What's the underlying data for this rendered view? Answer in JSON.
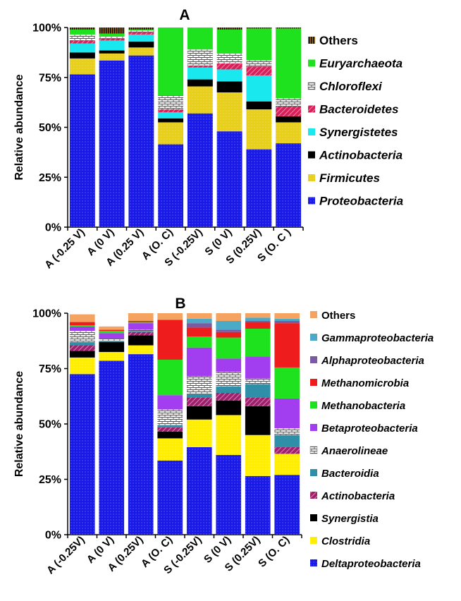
{
  "chart_data": [
    {
      "type": "bar",
      "stacked": true,
      "title": "A",
      "ylabel": "Relative  abundance",
      "ylim": [
        0,
        100
      ],
      "yticks": [
        "0%",
        "25%",
        "50%",
        "75%",
        "100%"
      ],
      "categories": [
        "A (-0.25 V)",
        "A (0 V)",
        "A (0.25 V)",
        "A (O. C)",
        "S (-0.25V)",
        "S (0 V)",
        "S (0.25V)",
        "S (O. C )"
      ],
      "legend_position": "right",
      "series": [
        {
          "name": "Proteobacteria",
          "color": "#1a1ae6",
          "pattern": "dots",
          "values": [
            76.5,
            83.5,
            86,
            41.5,
            57,
            48,
            39,
            42
          ]
        },
        {
          "name": "Firmicutes",
          "color": "#e8cf1c",
          "pattern": "dots",
          "values": [
            8,
            3.5,
            4,
            11,
            13.5,
            19.5,
            20,
            10.5
          ]
        },
        {
          "name": "Actinobacteria",
          "color": "#000000",
          "pattern": "solid",
          "values": [
            3,
            1.5,
            3,
            2,
            3.5,
            5.5,
            4,
            3
          ]
        },
        {
          "name": "Synergistetes",
          "color": "#19e8ef",
          "pattern": "solid",
          "values": [
            4.5,
            5,
            3.5,
            3,
            6,
            6,
            13,
            0
          ]
        },
        {
          "name": "Bacteroidetes",
          "color": "#d9205a",
          "pattern": "hatch",
          "values": [
            1.5,
            1,
            1,
            1.5,
            1,
            3,
            4.5,
            5
          ]
        },
        {
          "name": "Chloroflexi",
          "color": "#ffffff",
          "pattern": "bricks",
          "values": [
            3,
            1,
            1,
            7,
            8,
            5,
            3,
            4
          ]
        },
        {
          "name": "Euryarchaeota",
          "color": "#1ee21e",
          "pattern": "solid",
          "values": [
            2.5,
            1.5,
            0.5,
            34,
            11,
            12,
            16,
            35
          ]
        },
        {
          "name": "Others",
          "color": "#9a6a1a",
          "pattern": "vstripes",
          "values": [
            1,
            3,
            1,
            0,
            0,
            1,
            0.5,
            0.5
          ]
        }
      ]
    },
    {
      "type": "bar",
      "stacked": true,
      "title": "B",
      "ylabel": "Relative  abundance",
      "ylim": [
        0,
        100
      ],
      "yticks": [
        "0%",
        "25%",
        "50%",
        "75%",
        "100%"
      ],
      "categories": [
        "A (-0.25V)",
        "A (0 V)",
        "A (0.25V)",
        "A (O. C)",
        "S (-0.25V)",
        "S (0 V)",
        "S (0.25V)",
        "S (O. C)"
      ],
      "legend_position": "right",
      "series": [
        {
          "name": "Deltaproteobacteria",
          "color": "#1a1ae6",
          "pattern": "dots",
          "values": [
            72.5,
            78.5,
            81.5,
            33.5,
            39.5,
            36,
            26.5,
            27
          ]
        },
        {
          "name": "Clostridia",
          "color": "#ffee00",
          "pattern": "dots",
          "values": [
            7.5,
            4,
            4,
            10,
            12.5,
            18,
            18.5,
            9.5
          ]
        },
        {
          "name": "Synergistia",
          "color": "#000000",
          "pattern": "solid",
          "values": [
            3,
            4.5,
            4.5,
            3,
            6,
            6.5,
            13,
            0
          ]
        },
        {
          "name": "Actinobacteria",
          "color": "#a0206e",
          "pattern": "hatch",
          "values": [
            2.5,
            0,
            1.5,
            2,
            4,
            3.5,
            4,
            3
          ]
        },
        {
          "name": "Bacteroidia",
          "color": "#2f8fa8",
          "pattern": "solid",
          "values": [
            1.5,
            0.5,
            0.5,
            1,
            1.5,
            3,
            6,
            5.5
          ]
        },
        {
          "name": "Anaerolineae",
          "color": "#ffffff",
          "pattern": "bricks",
          "values": [
            5,
            1,
            0.5,
            7,
            8,
            6.5,
            2.5,
            3
          ]
        },
        {
          "name": "Betaproteobacteria",
          "color": "#a33ef0",
          "pattern": "solid",
          "values": [
            2,
            2.5,
            3,
            6.5,
            13,
            6,
            10,
            13.5
          ]
        },
        {
          "name": "Methanobacteria",
          "color": "#1ee21e",
          "pattern": "solid",
          "values": [
            0.5,
            1,
            0.5,
            16,
            5,
            9.5,
            12.5,
            14
          ]
        },
        {
          "name": "Methanomicrobia",
          "color": "#ee1c1c",
          "pattern": "solid",
          "values": [
            1.5,
            0.5,
            0.5,
            18,
            4,
            2.5,
            3,
            20
          ]
        },
        {
          "name": "Alphaproteobacteria",
          "color": "#7a5ba3",
          "pattern": "solid",
          "values": [
            0,
            0,
            0,
            0,
            2,
            1,
            0.5,
            1
          ]
        },
        {
          "name": "Gammaproteobacteria",
          "color": "#4baac8",
          "pattern": "solid",
          "values": [
            0,
            0,
            0,
            0,
            2,
            4,
            1.5,
            1
          ]
        },
        {
          "name": "Others",
          "color": "#f4a460",
          "pattern": "solid",
          "values": [
            3.5,
            1.5,
            3.5,
            3,
            2.5,
            3.5,
            2,
            2.5
          ]
        }
      ]
    }
  ]
}
